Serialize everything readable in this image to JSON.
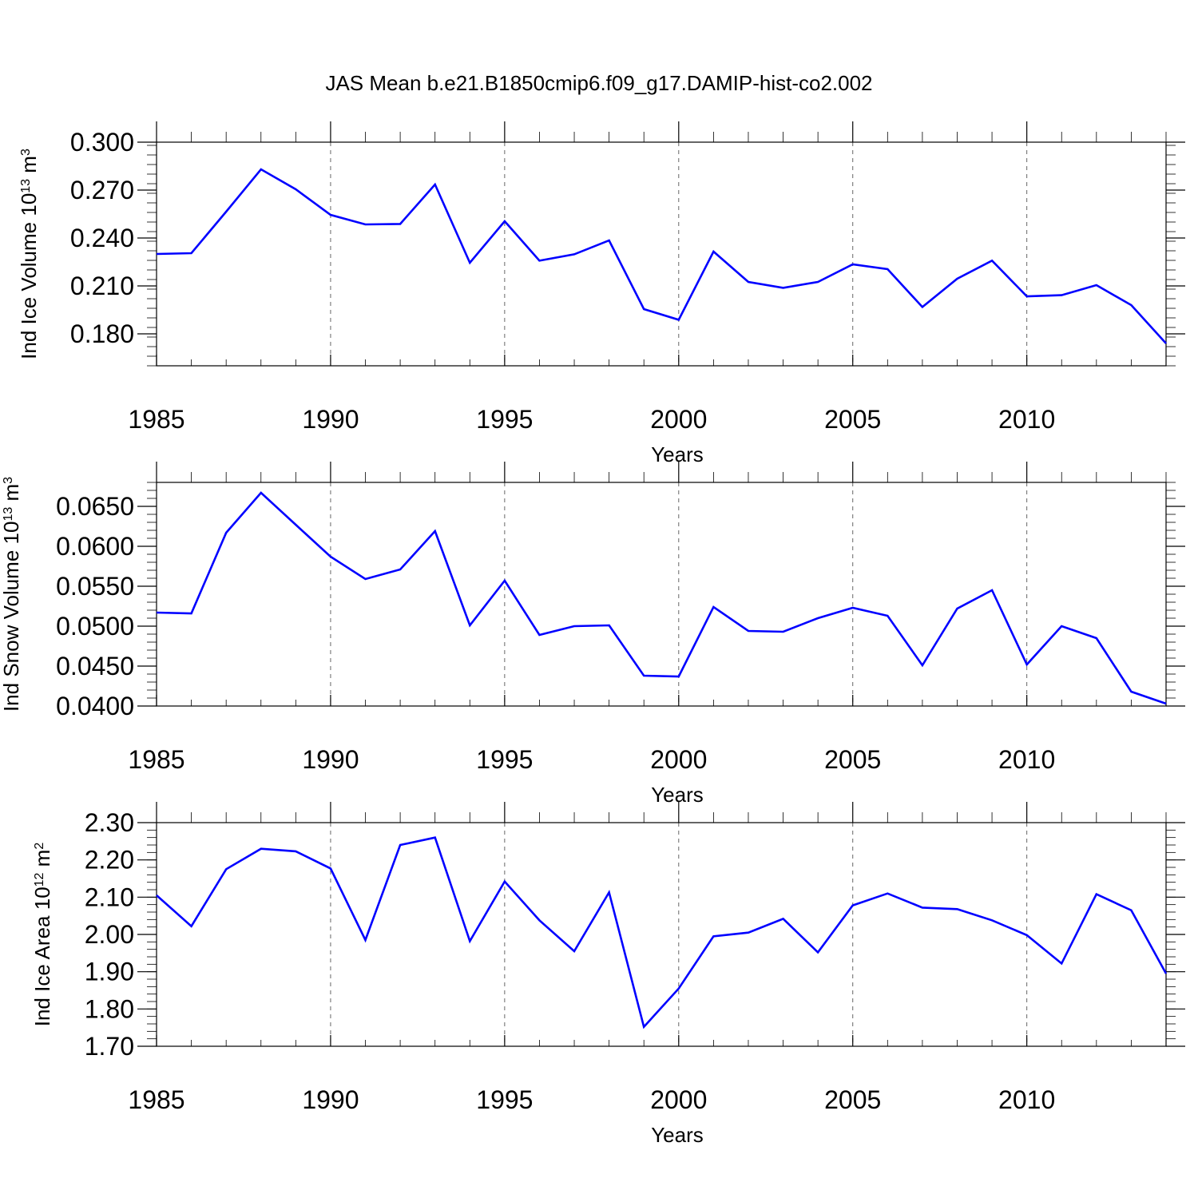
{
  "title": "JAS Mean b.e21.B1850cmip6.f09_g17.DAMIP-hist-co2.002",
  "line_color": "#0000ff",
  "chart_data": [
    {
      "type": "line",
      "title": "JAS Mean b.e21.B1850cmip6.f09_g17.DAMIP-hist-co2.002",
      "ylabel": "Ind Ice Volume 10",
      "ylabel_exp": "13",
      "ylabel_unit": " m",
      "ylabel_unit_exp": "3",
      "xlabel": "Years",
      "xlim": [
        1985,
        2014
      ],
      "ylim": [
        0.16,
        0.3
      ],
      "yticks": [
        0.18,
        0.21,
        0.24,
        0.27,
        0.3
      ],
      "ytick_labels": [
        "0.180",
        "0.210",
        "0.240",
        "0.270",
        "0.300"
      ],
      "xticks": [
        1985,
        1990,
        1995,
        2000,
        2005,
        2010
      ],
      "xtick_labels": [
        "1985",
        "1990",
        "1995",
        "2000",
        "2005",
        "2010"
      ],
      "x": [
        1985,
        1986,
        1987,
        1988,
        1989,
        1990,
        1991,
        1992,
        1993,
        1994,
        1995,
        1996,
        1997,
        1998,
        1999,
        2000,
        2001,
        2002,
        2003,
        2004,
        2005,
        2006,
        2007,
        2008,
        2009,
        2010,
        2011,
        2012,
        2013,
        2014
      ],
      "y": [
        0.23,
        0.2305,
        0.2565,
        0.283,
        0.2705,
        0.2545,
        0.2485,
        0.2488,
        0.2735,
        0.2245,
        0.2505,
        0.2258,
        0.2298,
        0.2385,
        0.1955,
        0.1888,
        0.2315,
        0.2125,
        0.2088,
        0.2125,
        0.2235,
        0.2205,
        0.1968,
        0.2145,
        0.2258,
        0.2035,
        0.2042,
        0.2105,
        0.198,
        0.174
      ]
    },
    {
      "type": "line",
      "ylabel": "Ind Snow Volume 10",
      "ylabel_exp": "13",
      "ylabel_unit": " m",
      "ylabel_unit_exp": "3",
      "xlabel": "Years",
      "xlim": [
        1985,
        2014
      ],
      "ylim": [
        0.04,
        0.068
      ],
      "yticks": [
        0.04,
        0.045,
        0.05,
        0.055,
        0.06,
        0.065
      ],
      "ytick_labels": [
        "0.0400",
        "0.0450",
        "0.0500",
        "0.0550",
        "0.0600",
        "0.0650"
      ],
      "xticks": [
        1985,
        1990,
        1995,
        2000,
        2005,
        2010
      ],
      "xtick_labels": [
        "1985",
        "1990",
        "1995",
        "2000",
        "2005",
        "2010"
      ],
      "x": [
        1985,
        1986,
        1987,
        1988,
        1989,
        1990,
        1991,
        1992,
        1993,
        1994,
        1995,
        1996,
        1997,
        1998,
        1999,
        2000,
        2001,
        2002,
        2003,
        2004,
        2005,
        2006,
        2007,
        2008,
        2009,
        2010,
        2011,
        2012,
        2013,
        2014
      ],
      "y": [
        0.0517,
        0.0516,
        0.0617,
        0.0667,
        0.0627,
        0.0587,
        0.0559,
        0.0571,
        0.0619,
        0.0501,
        0.0557,
        0.0489,
        0.05,
        0.0501,
        0.0438,
        0.0437,
        0.0524,
        0.0494,
        0.0493,
        0.051,
        0.0523,
        0.0513,
        0.0451,
        0.0522,
        0.0545,
        0.0452,
        0.05,
        0.0485,
        0.0418,
        0.0403
      ]
    },
    {
      "type": "line",
      "ylabel": "Ind Ice Area 10",
      "ylabel_exp": "12",
      "ylabel_unit": " m",
      "ylabel_unit_exp": "2",
      "xlabel": "Years",
      "xlim": [
        1985,
        2014
      ],
      "ylim": [
        1.7,
        2.3
      ],
      "yticks": [
        1.7,
        1.8,
        1.9,
        2.0,
        2.1,
        2.2,
        2.3
      ],
      "ytick_labels": [
        "1.70",
        "1.80",
        "1.90",
        "2.00",
        "2.10",
        "2.20",
        "2.30"
      ],
      "xticks": [
        1985,
        1990,
        1995,
        2000,
        2005,
        2010
      ],
      "xtick_labels": [
        "1985",
        "1990",
        "1995",
        "2000",
        "2005",
        "2010"
      ],
      "x": [
        1985,
        1986,
        1987,
        1988,
        1989,
        1990,
        1991,
        1992,
        1993,
        1994,
        1995,
        1996,
        1997,
        1998,
        1999,
        2000,
        2001,
        2002,
        2003,
        2004,
        2005,
        2006,
        2007,
        2008,
        2009,
        2010,
        2011,
        2012,
        2013,
        2014
      ],
      "y": [
        2.105,
        2.022,
        2.175,
        2.23,
        2.223,
        2.177,
        1.985,
        2.24,
        2.26,
        1.982,
        2.142,
        2.038,
        1.955,
        2.113,
        1.752,
        1.855,
        1.995,
        2.005,
        2.042,
        1.952,
        2.078,
        2.11,
        2.072,
        2.068,
        2.038,
        1.998,
        1.922,
        2.108,
        2.065,
        1.895
      ]
    }
  ]
}
